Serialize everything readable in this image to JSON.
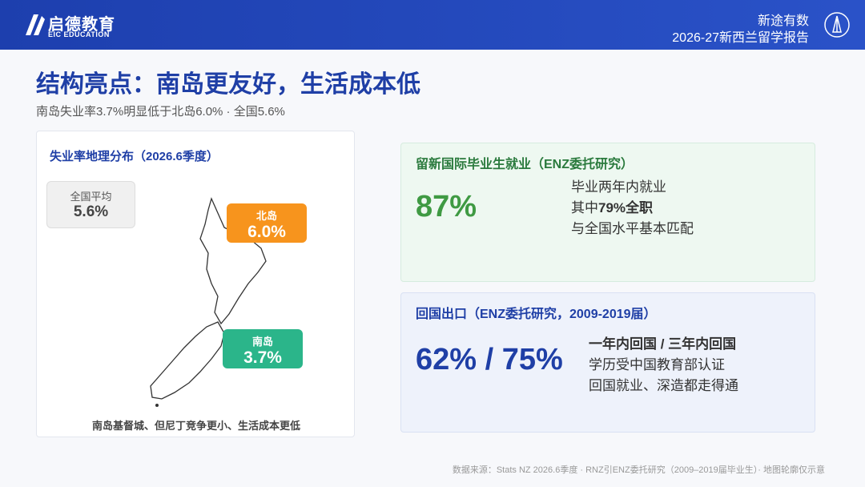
{
  "header": {
    "logo_name": "启德教育",
    "logo_sub": "EIC EDUCATION",
    "brand": "新途有数",
    "report": "2026-27新西兰留学报告"
  },
  "title": "结构亮点：南岛更友好，生活成本低",
  "subtitle": "南岛失业率3.7%明显低于北岛6.0% · 全国5.6%",
  "map_card": {
    "title": "失业率地理分布（2026.6季度）",
    "national": {
      "label": "全国平均",
      "value": "5.6%"
    },
    "north": {
      "label": "北岛",
      "value": "6.0%"
    },
    "south": {
      "label": "南岛",
      "value": "3.7%"
    },
    "note": "南岛基督城、但尼丁竞争更小、生活成本更低"
  },
  "employment_card": {
    "title": "留新国际毕业生就业（ENZ委托研究）",
    "stat": "87%",
    "lines": [
      "毕业两年内就业",
      [
        "其中",
        "79%全职"
      ],
      "与全国水平基本匹配"
    ]
  },
  "return_card": {
    "title": "回国出口（ENZ委托研究，2009-2019届）",
    "stat": "62% / 75%",
    "lines": [
      "一年内回国 / 三年内回国",
      "学历受中国教育部认证",
      "回国就业、深造都走得通"
    ]
  },
  "footer": "数据来源：Stats NZ 2026.6季度 · RNZ引ENZ委托研究（2009–2019届毕业生）· 地图轮廓仅示意"
}
